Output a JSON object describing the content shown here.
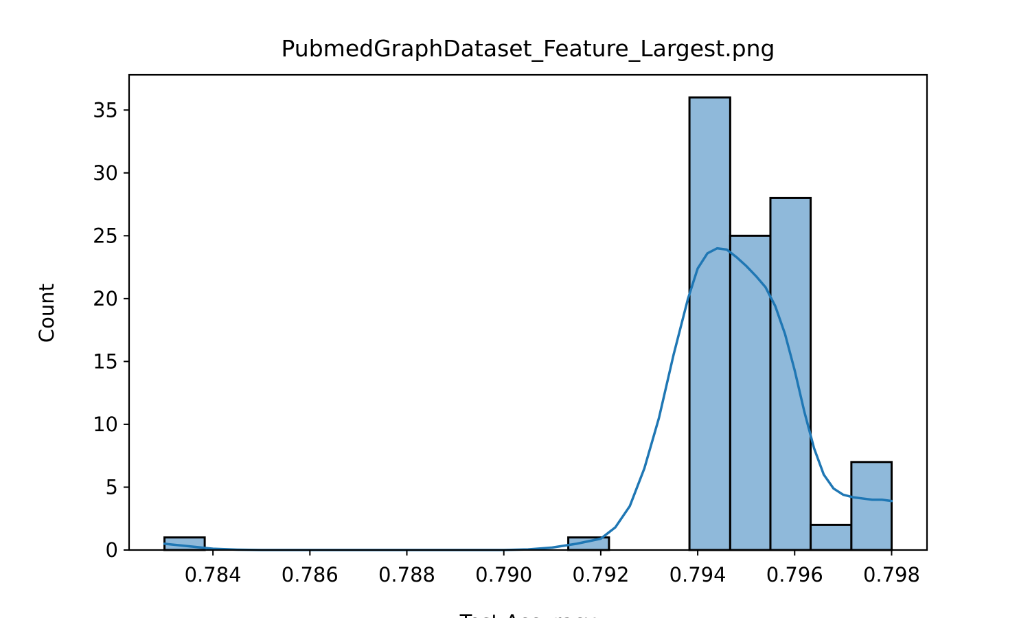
{
  "chart_data": {
    "type": "bar",
    "title": "PubmedGraphDataset_Feature_Largest.png",
    "xlabel": "Test Accuracy",
    "ylabel": "Count",
    "xlim": [
      0.78227,
      0.79873
    ],
    "ylim": [
      0,
      37.8
    ],
    "grid": false,
    "x_ticks": [
      "0.784",
      "0.786",
      "0.788",
      "0.790",
      "0.792",
      "0.794",
      "0.796",
      "0.798"
    ],
    "x_tick_values": [
      0.784,
      0.786,
      0.788,
      0.79,
      0.792,
      0.794,
      0.796,
      0.798
    ],
    "y_ticks": [
      "0",
      "5",
      "10",
      "15",
      "20",
      "25",
      "30",
      "35"
    ],
    "y_tick_values": [
      0,
      5,
      10,
      15,
      20,
      25,
      30,
      35
    ],
    "bins": [
      {
        "x0": 0.783,
        "x1": 0.78383,
        "count": 1
      },
      {
        "x0": 0.78383,
        "x1": 0.78467,
        "count": 0
      },
      {
        "x0": 0.78467,
        "x1": 0.7855,
        "count": 0
      },
      {
        "x0": 0.7855,
        "x1": 0.78633,
        "count": 0
      },
      {
        "x0": 0.78633,
        "x1": 0.78717,
        "count": 0
      },
      {
        "x0": 0.78717,
        "x1": 0.788,
        "count": 0
      },
      {
        "x0": 0.788,
        "x1": 0.78883,
        "count": 0
      },
      {
        "x0": 0.78883,
        "x1": 0.78967,
        "count": 0
      },
      {
        "x0": 0.78967,
        "x1": 0.7905,
        "count": 0
      },
      {
        "x0": 0.7905,
        "x1": 0.79133,
        "count": 0
      },
      {
        "x0": 0.79133,
        "x1": 0.79217,
        "count": 1
      },
      {
        "x0": 0.79217,
        "x1": 0.793,
        "count": 0
      },
      {
        "x0": 0.793,
        "x1": 0.79383,
        "count": 0
      },
      {
        "x0": 0.79383,
        "x1": 0.79467,
        "count": 36
      },
      {
        "x0": 0.79467,
        "x1": 0.7955,
        "count": 25
      },
      {
        "x0": 0.7955,
        "x1": 0.79633,
        "count": 28
      },
      {
        "x0": 0.79633,
        "x1": 0.79717,
        "count": 2
      },
      {
        "x0": 0.79717,
        "x1": 0.798,
        "count": 7
      }
    ],
    "kde": {
      "x": [
        0.783,
        0.7835,
        0.784,
        0.7845,
        0.785,
        0.786,
        0.787,
        0.788,
        0.789,
        0.79,
        0.7905,
        0.791,
        0.7915,
        0.792,
        0.7923,
        0.7926,
        0.7929,
        0.7932,
        0.7935,
        0.7938,
        0.794,
        0.7942,
        0.7944,
        0.7946,
        0.7948,
        0.795,
        0.7952,
        0.7954,
        0.7956,
        0.7958,
        0.796,
        0.7962,
        0.7964,
        0.7966,
        0.7968,
        0.797,
        0.7972,
        0.7974,
        0.7976,
        0.7978,
        0.798
      ],
      "y": [
        0.5,
        0.3,
        0.1,
        0.03,
        0.0,
        0.0,
        0.0,
        0.0,
        0.0,
        0.0,
        0.05,
        0.2,
        0.5,
        0.9,
        1.8,
        3.5,
        6.5,
        10.5,
        15.5,
        20.0,
        22.4,
        23.6,
        24.0,
        23.9,
        23.3,
        22.6,
        21.8,
        20.9,
        19.4,
        17.2,
        14.3,
        11.0,
        8.1,
        6.0,
        4.9,
        4.4,
        4.2,
        4.1,
        4.0,
        4.0,
        3.9
      ]
    },
    "colors": {
      "bar_fill": "#8fb9da",
      "bar_edge": "#000000",
      "kde_line": "#1f77b4"
    }
  }
}
